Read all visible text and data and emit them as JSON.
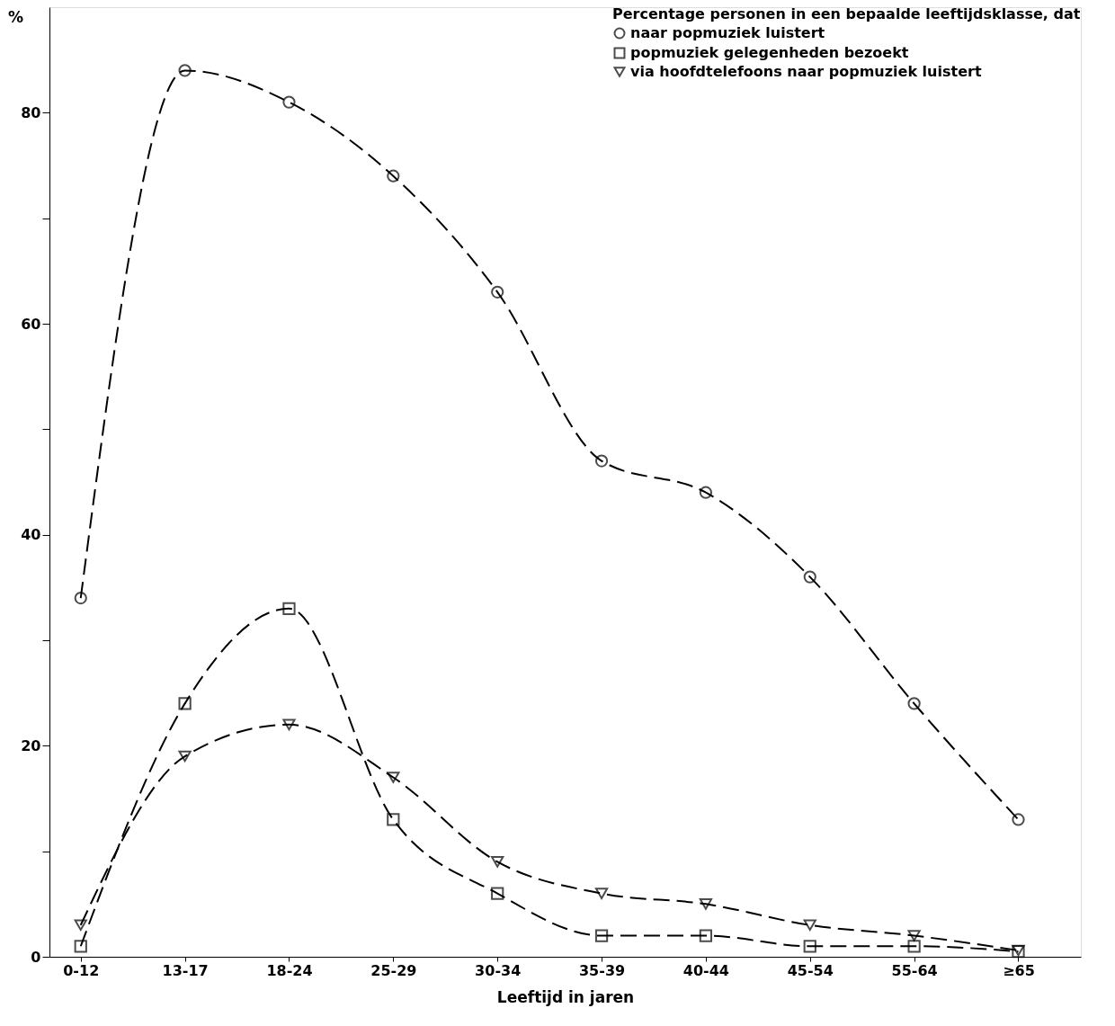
{
  "chart_data": {
    "type": "line",
    "categories": [
      "0-12",
      "13-17",
      "18-24",
      "25-29",
      "30-34",
      "35-39",
      "40-44",
      "45-54",
      "55-64",
      "≥65"
    ],
    "series": [
      {
        "name": "naar popmuziek luistert",
        "color": "#000000",
        "marker": "circle",
        "line_style": "dashed",
        "values": [
          34,
          84,
          81,
          74,
          63,
          47,
          44,
          36,
          24,
          13
        ]
      },
      {
        "name": "popmuziek gelegenheden bezoekt",
        "color": "#000000",
        "marker": "square",
        "line_style": "dashed",
        "values": [
          1,
          24,
          33,
          13,
          6,
          2,
          2,
          1,
          1,
          0.5
        ]
      },
      {
        "name": "via hoofdtelefoons naar popmuziek luistert",
        "color": "#000000",
        "marker": "triangle",
        "line_style": "dashed",
        "values": [
          3,
          19,
          22,
          17,
          9,
          6,
          5,
          3,
          2,
          0.6
        ]
      }
    ],
    "xlabel": "Leeftijd in jaren",
    "ylabel": "%",
    "legend_title": "Percentage personen in een bepaalde leeftijdsklasse, dat",
    "legend": "top right",
    "grid": false,
    "ylim": [
      0,
      90
    ],
    "yticks": [
      0,
      {
        "value": 10,
        "label": null
      },
      20,
      {
        "value": 30,
        "label": null
      },
      40,
      {
        "value": 50,
        "label": null
      },
      60,
      {
        "value": 70,
        "label": null
      },
      80
    ]
  }
}
